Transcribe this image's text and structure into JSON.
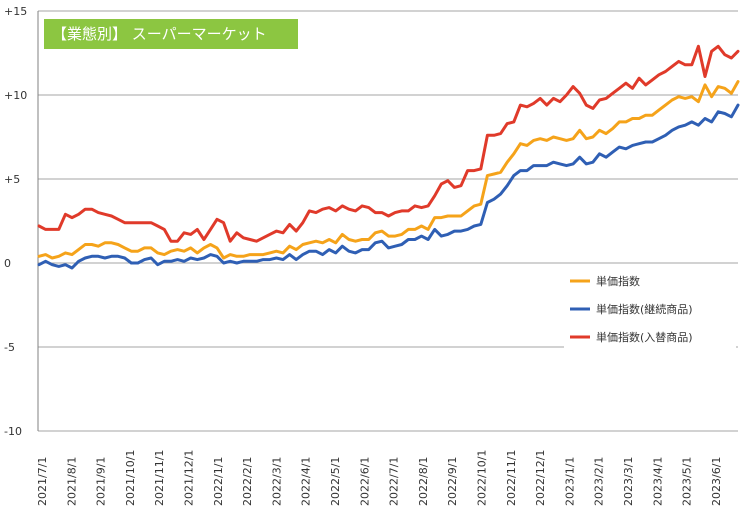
{
  "chart_title": "【業態別】 スーパーマーケット",
  "chart_data": {
    "type": "line",
    "title": "【業態別】 スーパーマーケット",
    "xlabel": "",
    "ylabel": "",
    "ylim": [
      -10,
      15
    ],
    "yticks": [
      {
        "value": 15,
        "label": "+15"
      },
      {
        "value": 10,
        "label": "+10"
      },
      {
        "value": 5,
        "label": "+5"
      },
      {
        "value": 0,
        "label": "0"
      },
      {
        "value": -5,
        "label": "-5"
      },
      {
        "value": -10,
        "label": "-10"
      }
    ],
    "x_tick_labels": [
      "2021/7/1",
      "2021/8/1",
      "2021/9/1",
      "2021/10/1",
      "2021/11/1",
      "2021/12/1",
      "2022/1/1",
      "2022/2/1",
      "2022/3/1",
      "2022/4/1",
      "2022/5/1",
      "2022/6/1",
      "2022/7/1",
      "2022/8/1",
      "2022/9/1",
      "2022/10/1",
      "2022/11/1",
      "2022/12/1",
      "2023/1/1",
      "2023/2/1",
      "2023/3/1",
      "2023/4/1",
      "2023/5/1",
      "2023/6/1"
    ],
    "grid": "horizontal",
    "legend_position": "right",
    "series": [
      {
        "name": "単価指数",
        "color": "#f5a31a",
        "values": [
          0.4,
          0.5,
          0.3,
          0.4,
          0.6,
          0.5,
          0.8,
          1.1,
          1.1,
          1.0,
          1.2,
          1.2,
          1.1,
          0.9,
          0.7,
          0.7,
          0.9,
          0.9,
          0.6,
          0.5,
          0.7,
          0.8,
          0.7,
          0.9,
          0.6,
          0.9,
          1.1,
          0.9,
          0.3,
          0.5,
          0.4,
          0.4,
          0.5,
          0.5,
          0.5,
          0.6,
          0.7,
          0.6,
          1.0,
          0.8,
          1.1,
          1.2,
          1.3,
          1.2,
          1.4,
          1.2,
          1.7,
          1.4,
          1.3,
          1.4,
          1.4,
          1.8,
          1.9,
          1.6,
          1.6,
          1.7,
          2.0,
          2.0,
          2.2,
          2.0,
          2.7,
          2.7,
          2.8,
          2.8,
          2.8,
          3.1,
          3.4,
          3.5,
          5.2,
          5.3,
          5.4,
          6.0,
          6.5,
          7.1,
          7.0,
          7.3,
          7.4,
          7.3,
          7.5,
          7.4,
          7.3,
          7.4,
          7.9,
          7.4,
          7.5,
          7.9,
          7.7,
          8.0,
          8.4,
          8.4,
          8.6,
          8.6,
          8.8,
          8.8,
          9.1,
          9.4,
          9.7,
          9.9,
          9.8,
          9.9,
          9.6,
          10.6,
          9.9,
          10.5,
          10.4,
          10.1,
          10.8
        ]
      },
      {
        "name": "単価指数(継続商品)",
        "color": "#2f5fb4",
        "values": [
          -0.1,
          0.1,
          -0.1,
          -0.2,
          -0.1,
          -0.3,
          0.1,
          0.3,
          0.4,
          0.4,
          0.3,
          0.4,
          0.4,
          0.3,
          0.0,
          0.0,
          0.2,
          0.3,
          -0.1,
          0.1,
          0.1,
          0.2,
          0.1,
          0.3,
          0.2,
          0.3,
          0.5,
          0.4,
          0.0,
          0.1,
          0.0,
          0.1,
          0.1,
          0.1,
          0.2,
          0.2,
          0.3,
          0.2,
          0.5,
          0.2,
          0.5,
          0.7,
          0.7,
          0.5,
          0.8,
          0.6,
          1.0,
          0.7,
          0.6,
          0.8,
          0.8,
          1.2,
          1.3,
          0.9,
          1.0,
          1.1,
          1.4,
          1.4,
          1.6,
          1.4,
          2.0,
          1.6,
          1.7,
          1.9,
          1.9,
          2.0,
          2.2,
          2.3,
          3.6,
          3.8,
          4.1,
          4.6,
          5.2,
          5.5,
          5.5,
          5.8,
          5.8,
          5.8,
          6.0,
          5.9,
          5.8,
          5.9,
          6.3,
          5.9,
          6.0,
          6.5,
          6.3,
          6.6,
          6.9,
          6.8,
          7.0,
          7.1,
          7.2,
          7.2,
          7.4,
          7.6,
          7.9,
          8.1,
          8.2,
          8.4,
          8.2,
          8.6,
          8.4,
          9.0,
          8.9,
          8.7,
          9.4
        ]
      },
      {
        "name": "単価指数(入替商品)",
        "color": "#e03a2a",
        "values": [
          2.2,
          2.0,
          2.0,
          2.0,
          2.9,
          2.7,
          2.9,
          3.2,
          3.2,
          3.0,
          2.9,
          2.8,
          2.6,
          2.4,
          2.4,
          2.4,
          2.4,
          2.4,
          2.2,
          2.0,
          1.3,
          1.3,
          1.8,
          1.7,
          2.0,
          1.4,
          2.0,
          2.6,
          2.4,
          1.3,
          1.8,
          1.5,
          1.4,
          1.3,
          1.5,
          1.7,
          1.9,
          1.8,
          2.3,
          1.9,
          2.4,
          3.1,
          3.0,
          3.2,
          3.3,
          3.1,
          3.4,
          3.2,
          3.1,
          3.4,
          3.3,
          3.0,
          3.0,
          2.8,
          3.0,
          3.1,
          3.1,
          3.4,
          3.3,
          3.4,
          4.0,
          4.7,
          4.9,
          4.5,
          4.6,
          5.5,
          5.5,
          5.6,
          7.6,
          7.6,
          7.7,
          8.3,
          8.4,
          9.4,
          9.3,
          9.5,
          9.8,
          9.4,
          9.8,
          9.6,
          10.0,
          10.5,
          10.1,
          9.4,
          9.2,
          9.7,
          9.8,
          10.1,
          10.4,
          10.7,
          10.4,
          11.0,
          10.6,
          10.9,
          11.2,
          11.4,
          11.7,
          12.0,
          11.8,
          11.8,
          12.9,
          11.1,
          12.6,
          12.9,
          12.4,
          12.2,
          12.6
        ]
      }
    ]
  }
}
